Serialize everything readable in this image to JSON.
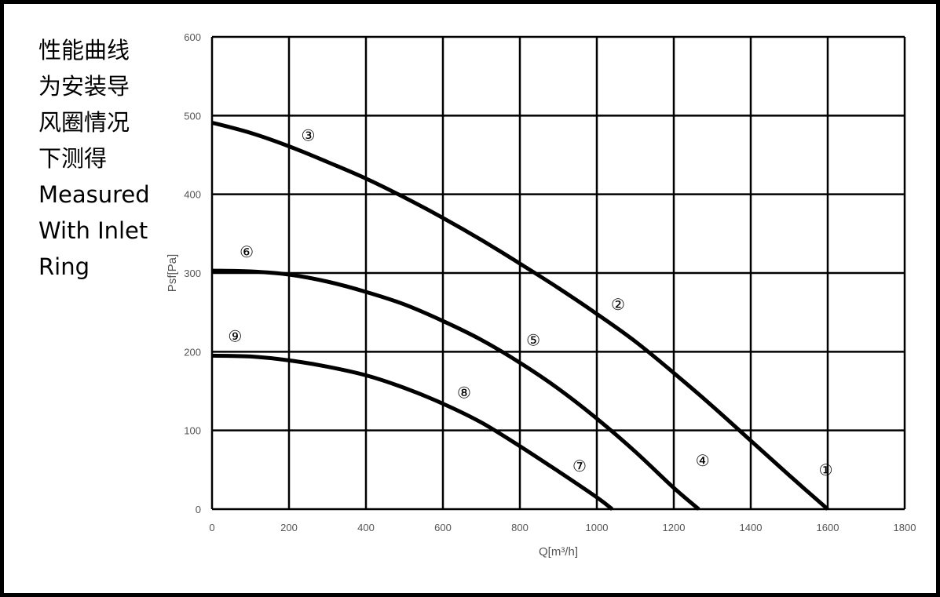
{
  "side_note": {
    "lines": [
      "性能曲线",
      "为安装导",
      "风圈情况",
      "下测得",
      "Measured",
      "With Inlet",
      "Ring"
    ]
  },
  "chart_data": {
    "type": "line",
    "title": "",
    "xlabel": "Q[m³/h]",
    "ylabel": "Psf[Pa]",
    "xlim": [
      0,
      1800
    ],
    "ylim": [
      0,
      600
    ],
    "x_ticks": [
      0,
      200,
      400,
      600,
      800,
      1000,
      1200,
      1400,
      1600,
      1800
    ],
    "y_ticks": [
      0,
      100,
      200,
      300,
      400,
      500,
      600
    ],
    "grid": true,
    "series": [
      {
        "x": [
          0,
          100,
          200,
          300,
          400,
          500,
          600,
          700,
          800,
          900,
          1000,
          1100,
          1200,
          1300,
          1400,
          1500,
          1600
        ],
        "y": [
          491,
          478,
          461,
          441,
          420,
          396,
          370,
          342,
          312,
          281,
          248,
          213,
          173,
          131,
          87,
          43,
          0
        ]
      },
      {
        "x": [
          0,
          100,
          200,
          300,
          400,
          500,
          600,
          700,
          800,
          900,
          1000,
          1100,
          1200,
          1265
        ],
        "y": [
          303,
          302,
          298,
          289,
          276,
          260,
          239,
          215,
          186,
          153,
          115,
          73,
          27,
          0
        ]
      },
      {
        "x": [
          0,
          100,
          200,
          300,
          400,
          500,
          600,
          700,
          800,
          900,
          1000,
          1040
        ],
        "y": [
          195,
          194,
          189,
          181,
          170,
          154,
          134,
          110,
          80,
          48,
          15,
          0
        ]
      }
    ],
    "labels": [
      {
        "text": "①",
        "x": 1595,
        "y": 50
      },
      {
        "text": "②",
        "x": 1055,
        "y": 260
      },
      {
        "text": "③",
        "x": 250,
        "y": 475
      },
      {
        "text": "④",
        "x": 1275,
        "y": 62
      },
      {
        "text": "⑤",
        "x": 835,
        "y": 215
      },
      {
        "text": "⑥",
        "x": 90,
        "y": 327
      },
      {
        "text": "⑦",
        "x": 955,
        "y": 55
      },
      {
        "text": "⑧",
        "x": 655,
        "y": 148
      },
      {
        "text": "⑨",
        "x": 60,
        "y": 220
      }
    ],
    "line_color": "#000000"
  }
}
